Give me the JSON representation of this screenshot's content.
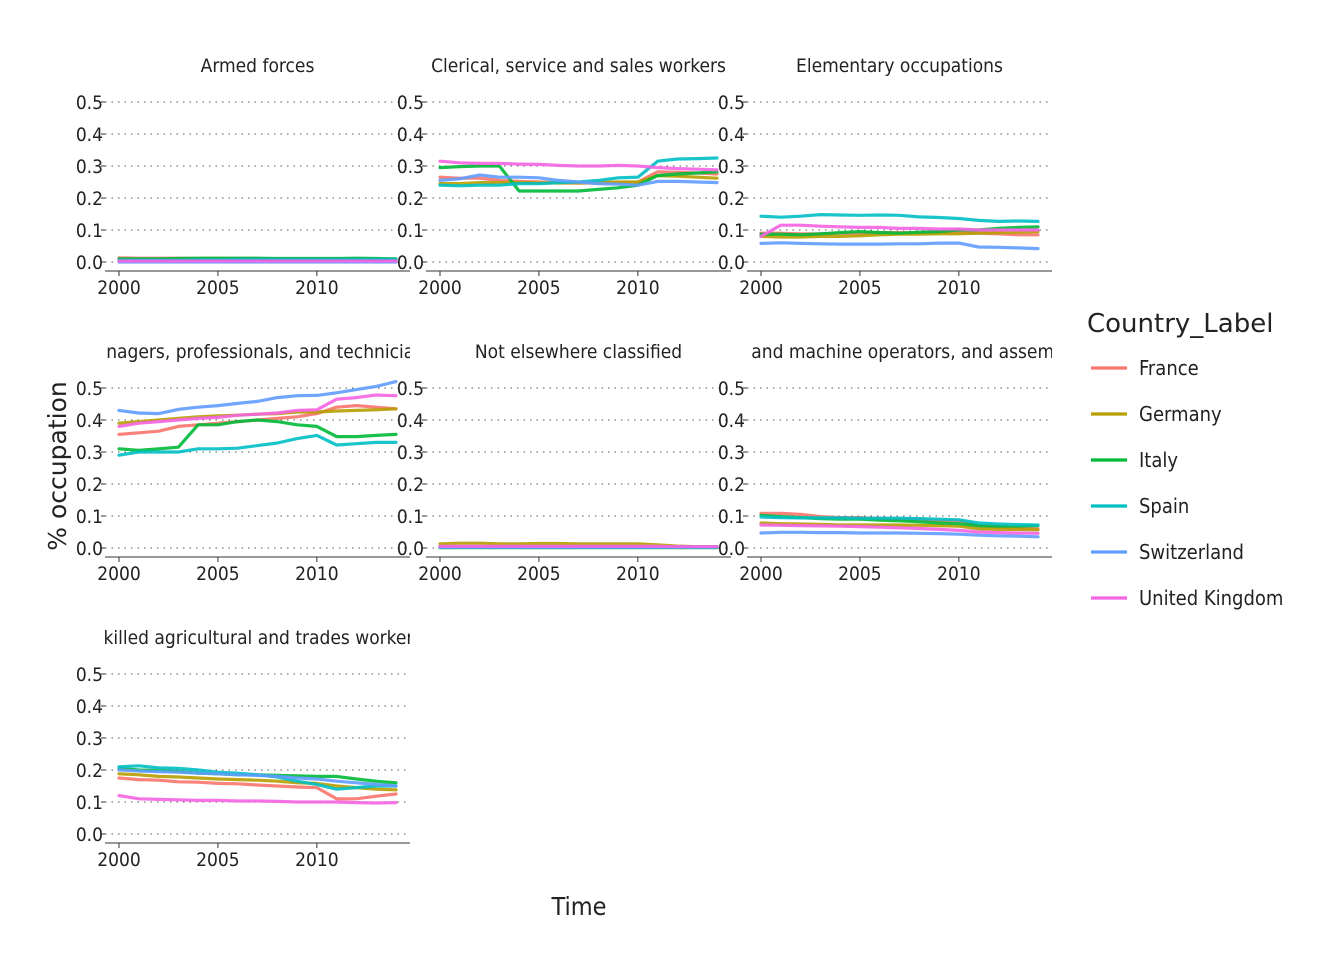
{
  "chart_data": {
    "type": "line",
    "xlabel": "Time",
    "ylabel": "% occupation",
    "xlim": [
      2000,
      2014
    ],
    "ylim": [
      0,
      0.5
    ],
    "x_ticks": [
      2000,
      2005,
      2010
    ],
    "y_ticks": [
      "0.0",
      "0.1",
      "0.2",
      "0.3",
      "0.4",
      "0.5"
    ],
    "grid": "horizontal dotted",
    "x": [
      2000,
      2001,
      2002,
      2003,
      2004,
      2005,
      2006,
      2007,
      2008,
      2009,
      2010,
      2011,
      2012,
      2013,
      2014
    ],
    "legend": {
      "title": "Country_Label",
      "placement": "right",
      "entries": [
        {
          "name": "France",
          "color": "#F8766D"
        },
        {
          "name": "Germany",
          "color": "#B79F00"
        },
        {
          "name": "Italy",
          "color": "#00BA38"
        },
        {
          "name": "Spain",
          "color": "#00BFC4"
        },
        {
          "name": "Switzerland",
          "color": "#619CFF"
        },
        {
          "name": "United Kingdom",
          "color": "#F564E3"
        }
      ]
    },
    "facets": [
      {
        "title": "Armed forces",
        "series": [
          {
            "name": "France",
            "values": [
              0.013,
              0.012,
              0.012,
              0.012,
              0.011,
              0.011,
              0.011,
              0.011,
              0.01,
              0.01,
              0.01,
              0.01,
              0.01,
              0.009,
              0.009
            ]
          },
          {
            "name": "Germany",
            "values": [
              0.005,
              0.005,
              0.005,
              0.005,
              0.005,
              0.004,
              0.004,
              0.004,
              0.004,
              0.004,
              0.004,
              0.004,
              0.004,
              0.004,
              0.004
            ]
          },
          {
            "name": "Italy",
            "values": [
              0.01,
              0.01,
              0.01,
              0.011,
              0.012,
              0.012,
              0.012,
              0.012,
              0.011,
              0.011,
              0.011,
              0.011,
              0.012,
              0.011,
              0.01
            ]
          },
          {
            "name": "Spain",
            "values": [
              0.006,
              0.006,
              0.006,
              0.006,
              0.007,
              0.007,
              0.008,
              0.008,
              0.008,
              0.008,
              0.008,
              0.008,
              0.008,
              0.008,
              0.008
            ]
          },
          {
            "name": "Switzerland",
            "values": [
              0.0,
              0.0,
              0.0,
              0.0,
              0.0,
              0.0,
              0.0,
              0.0,
              0.0,
              0.0,
              0.0,
              0.0,
              0.0,
              0.0,
              0.0
            ]
          },
          {
            "name": "United Kingdom",
            "values": [
              0.003,
              0.003,
              0.003,
              0.003,
              0.003,
              0.003,
              0.003,
              0.003,
              0.003,
              0.003,
              0.003,
              0.003,
              0.003,
              0.003,
              0.003
            ]
          }
        ]
      },
      {
        "title": "Clerical, service and sales workers",
        "series": [
          {
            "name": "France",
            "values": [
              0.265,
              0.262,
              0.262,
              0.255,
              0.252,
              0.25,
              0.248,
              0.247,
              0.247,
              0.248,
              0.25,
              0.282,
              0.28,
              0.278,
              0.275
            ]
          },
          {
            "name": "Germany",
            "values": [
              0.245,
              0.245,
              0.248,
              0.248,
              0.248,
              0.247,
              0.247,
              0.247,
              0.248,
              0.25,
              0.25,
              0.27,
              0.268,
              0.265,
              0.262
            ]
          },
          {
            "name": "Italy",
            "values": [
              0.295,
              0.298,
              0.3,
              0.3,
              0.222,
              0.222,
              0.222,
              0.222,
              0.227,
              0.232,
              0.24,
              0.27,
              0.275,
              0.278,
              0.282
            ]
          },
          {
            "name": "Spain",
            "values": [
              0.24,
              0.238,
              0.24,
              0.24,
              0.245,
              0.245,
              0.248,
              0.25,
              0.255,
              0.263,
              0.265,
              0.315,
              0.322,
              0.323,
              0.325
            ]
          },
          {
            "name": "Switzerland",
            "values": [
              0.255,
              0.26,
              0.272,
              0.265,
              0.265,
              0.263,
              0.255,
              0.25,
              0.245,
              0.243,
              0.24,
              0.252,
              0.252,
              0.25,
              0.248
            ]
          },
          {
            "name": "United Kingdom",
            "values": [
              0.315,
              0.31,
              0.308,
              0.308,
              0.306,
              0.305,
              0.302,
              0.3,
              0.3,
              0.302,
              0.3,
              0.295,
              0.292,
              0.29,
              0.288
            ]
          }
        ]
      },
      {
        "title": "Elementary occupations",
        "series": [
          {
            "name": "France",
            "values": [
              0.09,
              0.09,
              0.088,
              0.088,
              0.09,
              0.09,
              0.092,
              0.092,
              0.092,
              0.092,
              0.092,
              0.09,
              0.088,
              0.085,
              0.085
            ]
          },
          {
            "name": "Germany",
            "values": [
              0.08,
              0.078,
              0.078,
              0.08,
              0.08,
              0.082,
              0.085,
              0.087,
              0.087,
              0.088,
              0.088,
              0.09,
              0.092,
              0.093,
              0.095
            ]
          },
          {
            "name": "Italy",
            "values": [
              0.087,
              0.087,
              0.085,
              0.088,
              0.092,
              0.095,
              0.092,
              0.09,
              0.093,
              0.095,
              0.1,
              0.1,
              0.105,
              0.108,
              0.11
            ]
          },
          {
            "name": "Spain",
            "values": [
              0.143,
              0.14,
              0.143,
              0.148,
              0.147,
              0.146,
              0.147,
              0.146,
              0.141,
              0.139,
              0.136,
              0.13,
              0.127,
              0.128,
              0.127
            ]
          },
          {
            "name": "Switzerland",
            "values": [
              0.058,
              0.06,
              0.058,
              0.057,
              0.056,
              0.056,
              0.056,
              0.057,
              0.057,
              0.059,
              0.059,
              0.047,
              0.046,
              0.044,
              0.042
            ]
          },
          {
            "name": "United Kingdom",
            "values": [
              0.08,
              0.115,
              0.115,
              0.112,
              0.11,
              0.108,
              0.108,
              0.105,
              0.105,
              0.103,
              0.103,
              0.1,
              0.1,
              0.1,
              0.1
            ]
          }
        ]
      },
      {
        "title": "Managers, professionals, and technicians",
        "series": [
          {
            "name": "France",
            "values": [
              0.355,
              0.36,
              0.365,
              0.38,
              0.385,
              0.39,
              0.395,
              0.4,
              0.405,
              0.41,
              0.42,
              0.44,
              0.445,
              0.44,
              0.435
            ]
          },
          {
            "name": "Germany",
            "values": [
              0.39,
              0.395,
              0.4,
              0.405,
              0.41,
              0.413,
              0.415,
              0.418,
              0.42,
              0.425,
              0.425,
              0.428,
              0.43,
              0.432,
              0.435
            ]
          },
          {
            "name": "Italy",
            "values": [
              0.31,
              0.305,
              0.31,
              0.315,
              0.385,
              0.385,
              0.395,
              0.4,
              0.395,
              0.385,
              0.38,
              0.348,
              0.348,
              0.352,
              0.355
            ]
          },
          {
            "name": "Spain",
            "values": [
              0.29,
              0.3,
              0.3,
              0.3,
              0.31,
              0.31,
              0.312,
              0.32,
              0.328,
              0.342,
              0.352,
              0.322,
              0.326,
              0.33,
              0.33
            ]
          },
          {
            "name": "Switzerland",
            "values": [
              0.43,
              0.422,
              0.42,
              0.433,
              0.44,
              0.445,
              0.452,
              0.458,
              0.47,
              0.476,
              0.477,
              0.485,
              0.495,
              0.505,
              0.52
            ]
          },
          {
            "name": "United Kingdom",
            "values": [
              0.38,
              0.39,
              0.395,
              0.4,
              0.405,
              0.408,
              0.415,
              0.418,
              0.422,
              0.43,
              0.432,
              0.465,
              0.47,
              0.478,
              0.476
            ]
          }
        ]
      },
      {
        "title": "Not elsewhere classified",
        "series": [
          {
            "name": "France",
            "values": [
              0.004,
              0.004,
              0.004,
              0.004,
              0.004,
              0.004,
              0.004,
              0.004,
              0.004,
              0.004,
              0.004,
              0.004,
              0.004,
              0.004,
              0.004
            ]
          },
          {
            "name": "Germany",
            "values": [
              0.013,
              0.015,
              0.015,
              0.013,
              0.013,
              0.014,
              0.014,
              0.013,
              0.013,
              0.013,
              0.013,
              0.01,
              0.006,
              0.004,
              0.004
            ]
          },
          {
            "name": "Italy",
            "values": [
              0.001,
              0.001,
              0.001,
              0.001,
              0.001,
              0.001,
              0.001,
              0.001,
              0.001,
              0.001,
              0.001,
              0.001,
              0.001,
              0.001,
              0.001
            ]
          },
          {
            "name": "Spain",
            "values": [
              0.002,
              0.002,
              0.002,
              0.002,
              0.002,
              0.002,
              0.002,
              0.002,
              0.002,
              0.002,
              0.002,
              0.002,
              0.002,
              0.002,
              0.002
            ]
          },
          {
            "name": "Switzerland",
            "values": [
              0.003,
              0.003,
              0.003,
              0.003,
              0.003,
              0.003,
              0.003,
              0.003,
              0.003,
              0.003,
              0.003,
              0.003,
              0.003,
              0.003,
              0.003
            ]
          },
          {
            "name": "United Kingdom",
            "values": [
              0.005,
              0.005,
              0.005,
              0.005,
              0.005,
              0.005,
              0.005,
              0.005,
              0.005,
              0.005,
              0.005,
              0.005,
              0.004,
              0.004,
              0.004
            ]
          }
        ]
      },
      {
        "title": "Plant and machine operators, and assemblers",
        "series": [
          {
            "name": "France",
            "values": [
              0.108,
              0.108,
              0.105,
              0.098,
              0.095,
              0.095,
              0.092,
              0.09,
              0.088,
              0.085,
              0.085,
              0.07,
              0.065,
              0.062,
              0.06
            ]
          },
          {
            "name": "Germany",
            "values": [
              0.078,
              0.076,
              0.075,
              0.074,
              0.072,
              0.072,
              0.072,
              0.072,
              0.071,
              0.07,
              0.068,
              0.06,
              0.058,
              0.058,
              0.057
            ]
          },
          {
            "name": "Italy",
            "values": [
              0.102,
              0.098,
              0.095,
              0.092,
              0.09,
              0.09,
              0.087,
              0.085,
              0.082,
              0.078,
              0.076,
              0.07,
              0.068,
              0.068,
              0.07
            ]
          },
          {
            "name": "Spain",
            "values": [
              0.097,
              0.095,
              0.094,
              0.094,
              0.094,
              0.093,
              0.093,
              0.093,
              0.092,
              0.09,
              0.088,
              0.078,
              0.075,
              0.073,
              0.072
            ]
          },
          {
            "name": "Switzerland",
            "values": [
              0.047,
              0.049,
              0.049,
              0.048,
              0.048,
              0.047,
              0.047,
              0.047,
              0.046,
              0.045,
              0.043,
              0.04,
              0.038,
              0.037,
              0.035
            ]
          },
          {
            "name": "United Kingdom",
            "values": [
              0.072,
              0.071,
              0.07,
              0.069,
              0.068,
              0.067,
              0.065,
              0.063,
              0.061,
              0.058,
              0.055,
              0.05,
              0.048,
              0.047,
              0.046
            ]
          }
        ]
      },
      {
        "title": "Skilled agricultural and trades workers",
        "series": [
          {
            "name": "France",
            "values": [
              0.175,
              0.17,
              0.168,
              0.163,
              0.162,
              0.158,
              0.157,
              0.153,
              0.15,
              0.147,
              0.145,
              0.11,
              0.11,
              0.118,
              0.125
            ]
          },
          {
            "name": "Germany",
            "values": [
              0.188,
              0.185,
              0.18,
              0.178,
              0.175,
              0.172,
              0.17,
              0.168,
              0.165,
              0.16,
              0.158,
              0.15,
              0.145,
              0.14,
              0.138
            ]
          },
          {
            "name": "Italy",
            "values": [
              0.205,
              0.2,
              0.198,
              0.195,
              0.19,
              0.188,
              0.185,
              0.185,
              0.183,
              0.182,
              0.18,
              0.18,
              0.172,
              0.165,
              0.16
            ]
          },
          {
            "name": "Spain",
            "values": [
              0.21,
              0.213,
              0.207,
              0.205,
              0.2,
              0.193,
              0.19,
              0.185,
              0.178,
              0.165,
              0.155,
              0.14,
              0.145,
              0.15,
              0.15
            ]
          },
          {
            "name": "Switzerland",
            "values": [
              0.2,
              0.197,
              0.195,
              0.193,
              0.19,
              0.188,
              0.185,
              0.183,
              0.18,
              0.175,
              0.172,
              0.165,
              0.16,
              0.155,
              0.15
            ]
          },
          {
            "name": "United Kingdom",
            "values": [
              0.12,
              0.11,
              0.108,
              0.107,
              0.105,
              0.105,
              0.103,
              0.103,
              0.102,
              0.1,
              0.1,
              0.1,
              0.098,
              0.097,
              0.098
            ]
          }
        ]
      }
    ]
  }
}
